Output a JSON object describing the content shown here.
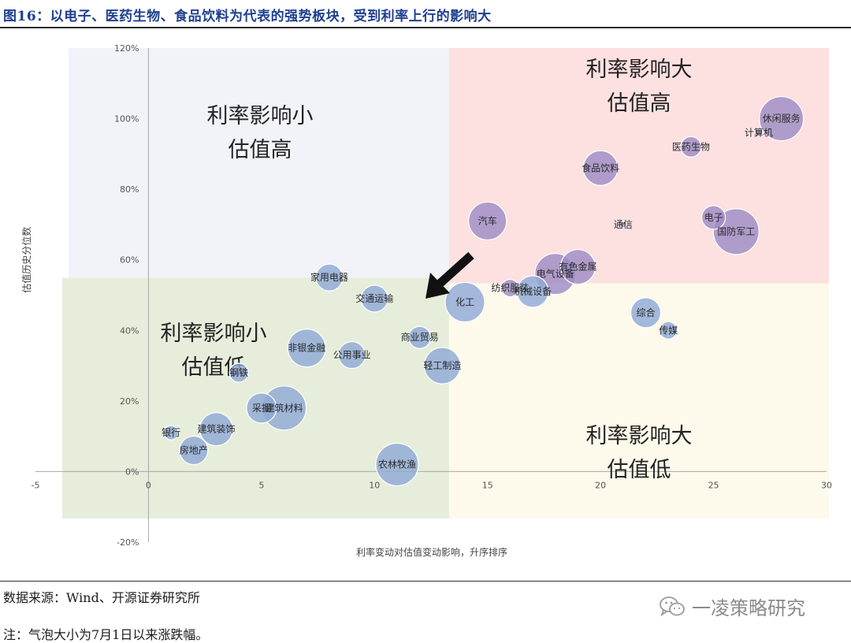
{
  "header": {
    "title": "图16：以电子、医药生物、食品饮料为代表的强势板块，受到利率上行的影响大"
  },
  "footer": {
    "source": "数据来源：Wind、开源证券研究所",
    "note": "注：气泡大小为7月1日以来涨跌幅。",
    "watermark": "一凌策略研究"
  },
  "icons": {
    "watermark_icon": "wechat-icon"
  },
  "colors": {
    "quad_top_left": "#f2f3f9",
    "quad_top_right": "#fde0e0",
    "quad_bottom_left": "#e6eedb",
    "quad_bottom_right": "#fdf9eb",
    "bubble_blue": "#8faad6",
    "bubble_purple": "#9d8cc4",
    "title_blue": "#1f3f8f"
  },
  "chart_data": {
    "type": "scatter",
    "title": "",
    "xlabel": "利率变动对估值变动影响，升序排序",
    "ylabel": "估值历史分位数",
    "xlim": [
      -5,
      30
    ],
    "ylim": [
      -0.2,
      1.2
    ],
    "xticks": [
      "-5",
      "0",
      "5",
      "10",
      "15",
      "20",
      "25",
      "30"
    ],
    "yticks": [
      "-20%",
      "0%",
      "20%",
      "40%",
      "60%",
      "80%",
      "100%",
      "120%"
    ],
    "x_split": 13.3,
    "y_split": 0.54,
    "quadrants": {
      "top_left": [
        "利率影响小",
        "估值高"
      ],
      "top_right": [
        "利率影响大",
        "估值高"
      ],
      "bottom_left": [
        "利率影响小",
        "估值低"
      ],
      "bottom_right": [
        "利率影响大",
        "估值低"
      ]
    },
    "points": [
      {
        "label": "银行",
        "x": 1,
        "y": 0.11,
        "size": 9,
        "color": "blue"
      },
      {
        "label": "房地产",
        "x": 2,
        "y": 0.06,
        "size": 18,
        "color": "blue"
      },
      {
        "label": "建筑装饰",
        "x": 3,
        "y": 0.12,
        "size": 21,
        "color": "blue"
      },
      {
        "label": "钢铁",
        "x": 4,
        "y": 0.28,
        "size": 12,
        "color": "blue"
      },
      {
        "label": "采掘",
        "x": 5,
        "y": 0.18,
        "size": 19,
        "color": "blue"
      },
      {
        "label": "建筑材料",
        "x": 6,
        "y": 0.18,
        "size": 28,
        "color": "blue"
      },
      {
        "label": "非银金融",
        "x": 7,
        "y": 0.35,
        "size": 24,
        "color": "blue"
      },
      {
        "label": "家用电器",
        "x": 8,
        "y": 0.55,
        "size": 17,
        "color": "blue"
      },
      {
        "label": "公用事业",
        "x": 9,
        "y": 0.33,
        "size": 17,
        "color": "blue"
      },
      {
        "label": "交通运输",
        "x": 10,
        "y": 0.49,
        "size": 17,
        "color": "blue"
      },
      {
        "label": "农林牧渔",
        "x": 11,
        "y": 0.02,
        "size": 27,
        "color": "blue"
      },
      {
        "label": "商业贸易",
        "x": 12,
        "y": 0.38,
        "size": 14,
        "color": "blue"
      },
      {
        "label": "轻工制造",
        "x": 13,
        "y": 0.3,
        "size": 23,
        "color": "blue"
      },
      {
        "label": "化工",
        "x": 14,
        "y": 0.48,
        "size": 25,
        "color": "blue"
      },
      {
        "label": "汽车",
        "x": 15,
        "y": 0.71,
        "size": 24,
        "color": "purple"
      },
      {
        "label": "纺织服装",
        "x": 16,
        "y": 0.52,
        "size": 11,
        "color": "purple"
      },
      {
        "label": "机械设备",
        "x": 17,
        "y": 0.51,
        "size": 20,
        "color": "blue"
      },
      {
        "label": "电气设备",
        "x": 18,
        "y": 0.56,
        "size": 26,
        "color": "purple"
      },
      {
        "label": "有色金属",
        "x": 19,
        "y": 0.58,
        "size": 22,
        "color": "purple"
      },
      {
        "label": "食品饮料",
        "x": 20,
        "y": 0.86,
        "size": 22,
        "color": "purple"
      },
      {
        "label": "通信",
        "x": 21,
        "y": 0.7,
        "size": 4,
        "color": "purple"
      },
      {
        "label": "综合",
        "x": 22,
        "y": 0.45,
        "size": 19,
        "color": "blue"
      },
      {
        "label": "传媒",
        "x": 23,
        "y": 0.4,
        "size": 11,
        "color": "blue"
      },
      {
        "label": "医药生物",
        "x": 24,
        "y": 0.92,
        "size": 13,
        "color": "purple"
      },
      {
        "label": "电子",
        "x": 25,
        "y": 0.72,
        "size": 15,
        "color": "purple"
      },
      {
        "label": "国防军工",
        "x": 26,
        "y": 0.68,
        "size": 29,
        "color": "purple"
      },
      {
        "label": "计算机",
        "x": 27,
        "y": 0.96,
        "size": 4,
        "color": "purple"
      },
      {
        "label": "休闲服务",
        "x": 28,
        "y": 1.0,
        "size": 28,
        "color": "purple"
      }
    ],
    "annotation": {
      "type": "arrow",
      "label": "",
      "target_label": "交通运输"
    }
  }
}
